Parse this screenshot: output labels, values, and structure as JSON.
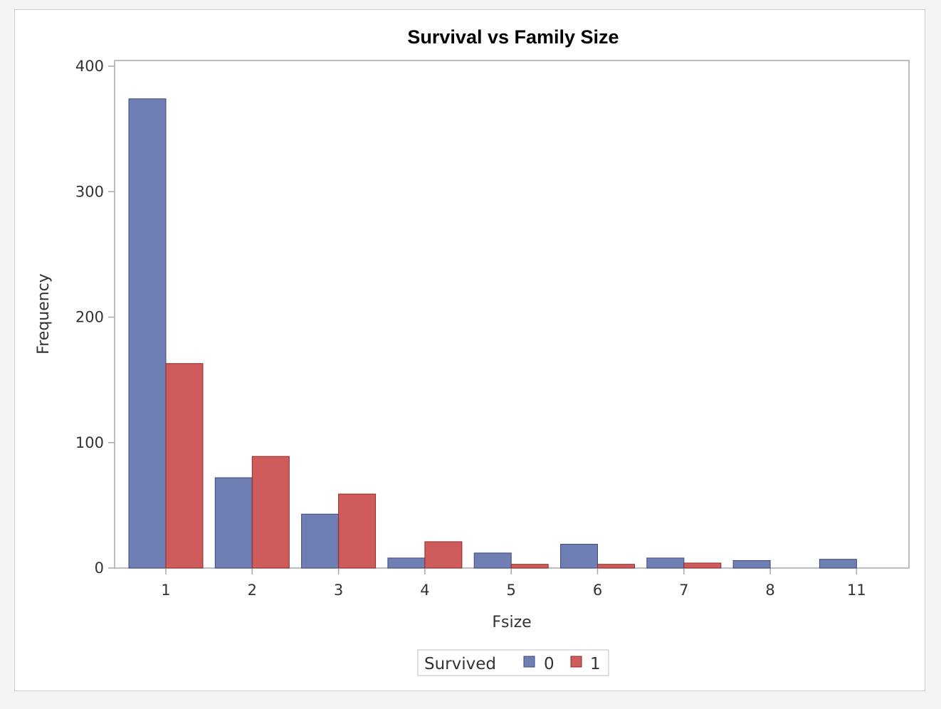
{
  "chart_data": {
    "type": "bar",
    "title": "Survival vs Family Size",
    "xlabel": "Fsize",
    "ylabel": "Frequency",
    "categories": [
      "1",
      "2",
      "3",
      "4",
      "5",
      "6",
      "7",
      "8",
      "11"
    ],
    "series": [
      {
        "name": "0",
        "values": [
          374,
          72,
          43,
          8,
          12,
          19,
          8,
          6,
          7
        ],
        "color": "#6f7eb3"
      },
      {
        "name": "1",
        "values": [
          163,
          89,
          59,
          21,
          3,
          3,
          4,
          0,
          0
        ],
        "color": "#d05b5b"
      }
    ],
    "ylim": [
      0,
      400
    ],
    "yticks": [
      0,
      100,
      200,
      300,
      400
    ],
    "grid": false,
    "legend": {
      "title": "Survived",
      "placement": "bottom-center"
    }
  }
}
